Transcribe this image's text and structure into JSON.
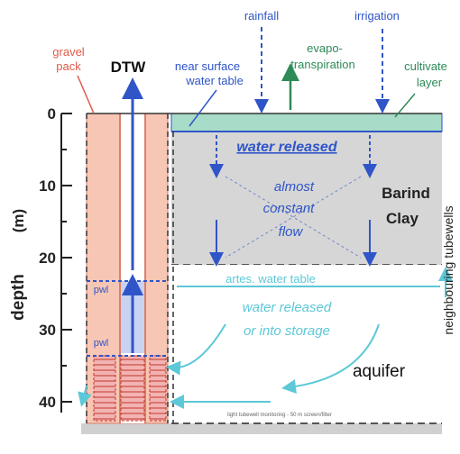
{
  "labels": {
    "gravel_pack": [
      "gravel",
      "pack"
    ],
    "dtw": "DTW",
    "near_surface_water_table": [
      "near surface",
      "water table"
    ],
    "rainfall": "rainfall",
    "irrigation": "irrigation",
    "evapotranspiration": [
      "evapo-",
      "transpiration"
    ],
    "cultivated_layer": [
      "cultivate",
      "layer"
    ],
    "water_released": "water released",
    "almost_constant_flow": [
      "almost",
      "constant",
      "flow"
    ],
    "barind_clay": [
      "Barind",
      "Clay"
    ],
    "artesian_water_table": "artes. water table",
    "water_released_storage": [
      "water released",
      "or into storage"
    ],
    "aquifer": "aquifer",
    "pwl_upper": "pwl",
    "pwl_lower": "pwl",
    "neighbouring_tubewells": "neighbouring tubewells",
    "footnote": "light tubewell monitoring - 50 m screen/filter"
  },
  "depth_axis": {
    "label": "depth",
    "unit": "(m)",
    "ticks": [
      "0",
      "10",
      "20",
      "30",
      "40"
    ]
  },
  "colors": {
    "gravel": "#f8c6b4",
    "clay": "#d6d6d6",
    "cultivated": "#a8dcc8",
    "flow_blue": "#2f55c8",
    "aquifer_cyan": "#5cc8d8",
    "green": "#2e8b57",
    "red_label": "#e05a4a"
  }
}
